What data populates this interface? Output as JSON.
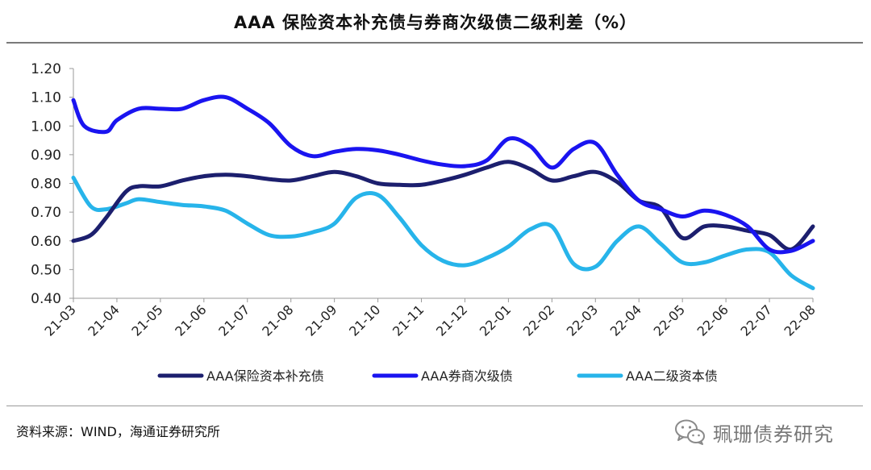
{
  "title": "AAA 保险资本补充债与券商次级债二级利差（%）",
  "source": "资料来源：WIND，海通证券研究所",
  "watermark": "珮珊债券研究",
  "chart_data": {
    "type": "line",
    "title": "AAA 保险资本补充债与券商次级债二级利差（%）",
    "xlabel": "",
    "ylabel": "",
    "ylim": [
      0.4,
      1.2
    ],
    "yticks": [
      "0.40",
      "0.50",
      "0.60",
      "0.70",
      "0.80",
      "0.90",
      "1.00",
      "1.10",
      "1.20"
    ],
    "categories": [
      "21-03",
      "21-04",
      "21-05",
      "21-06",
      "21-07",
      "21-08",
      "21-09",
      "21-10",
      "21-11",
      "21-12",
      "22-01",
      "22-02",
      "22-03",
      "22-04",
      "22-05",
      "22-06",
      "22-07",
      "22-08"
    ],
    "legend_position": "bottom",
    "series": [
      {
        "name": "AAA保险资本补充债",
        "color": "#1c1f6e",
        "x": [
          0,
          0.4,
          0.75,
          1.2,
          1.5,
          2,
          2.5,
          3,
          3.5,
          4,
          4.5,
          5,
          5.5,
          6,
          6.5,
          7,
          7.5,
          8,
          8.5,
          9,
          9.5,
          10,
          10.5,
          11,
          11.5,
          12,
          12.5,
          13,
          13.5,
          14,
          14.5,
          15,
          15.5,
          16,
          16.5,
          17
        ],
        "y": [
          0.6,
          0.62,
          0.68,
          0.77,
          0.79,
          0.79,
          0.81,
          0.825,
          0.83,
          0.825,
          0.815,
          0.81,
          0.825,
          0.84,
          0.825,
          0.8,
          0.795,
          0.795,
          0.81,
          0.83,
          0.855,
          0.875,
          0.85,
          0.81,
          0.825,
          0.84,
          0.805,
          0.74,
          0.715,
          0.61,
          0.65,
          0.65,
          0.635,
          0.62,
          0.57,
          0.65
        ]
      },
      {
        "name": "AAA券商次级债",
        "color": "#1a14f0",
        "x": [
          0,
          0.25,
          0.75,
          1,
          1.5,
          2,
          2.5,
          3,
          3.5,
          4,
          4.5,
          5,
          5.5,
          6,
          6.5,
          7,
          7.5,
          8,
          8.5,
          9,
          9.5,
          10,
          10.5,
          11,
          11.5,
          12,
          12.5,
          13,
          13.5,
          14,
          14.5,
          15,
          15.5,
          16,
          16.5,
          17
        ],
        "y": [
          1.09,
          1.0,
          0.98,
          1.02,
          1.06,
          1.06,
          1.06,
          1.09,
          1.1,
          1.06,
          1.01,
          0.93,
          0.895,
          0.91,
          0.92,
          0.915,
          0.9,
          0.88,
          0.865,
          0.86,
          0.88,
          0.955,
          0.93,
          0.855,
          0.92,
          0.94,
          0.83,
          0.74,
          0.71,
          0.685,
          0.705,
          0.69,
          0.65,
          0.57,
          0.565,
          0.6
        ]
      },
      {
        "name": "AAA二级资本债",
        "color": "#27b4ea",
        "x": [
          0,
          0.4,
          0.75,
          1.2,
          1.5,
          2,
          2.5,
          3,
          3.5,
          4,
          4.5,
          5,
          5.5,
          6,
          6.5,
          7,
          7.5,
          8,
          8.5,
          9,
          9.5,
          10,
          10.5,
          11,
          11.5,
          12,
          12.5,
          13,
          13.5,
          14,
          14.5,
          15,
          15.5,
          16,
          16.5,
          17
        ],
        "y": [
          0.82,
          0.72,
          0.71,
          0.73,
          0.745,
          0.735,
          0.725,
          0.72,
          0.705,
          0.66,
          0.62,
          0.615,
          0.63,
          0.66,
          0.75,
          0.76,
          0.68,
          0.585,
          0.53,
          0.515,
          0.54,
          0.58,
          0.64,
          0.65,
          0.52,
          0.51,
          0.6,
          0.65,
          0.59,
          0.525,
          0.525,
          0.55,
          0.57,
          0.56,
          0.48,
          0.435
        ]
      }
    ]
  }
}
